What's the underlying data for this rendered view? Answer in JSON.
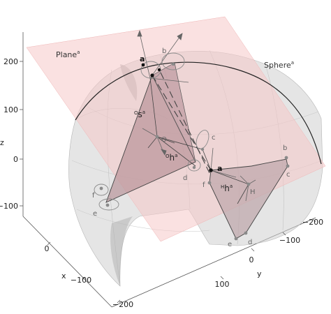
{
  "labels": {
    "plane": "Plane",
    "plane_sup": "a",
    "sphere": "Sphere",
    "sphere_sup": "a",
    "sym_s_pre": "O",
    "sym_s": "s",
    "sym_s_sup": "a",
    "sym_h_pre": "O",
    "sym_h": "h",
    "sym_h_sup": "a",
    "sym_hh_pre": "H",
    "sym_hh": "h",
    "sym_hh_sup": "a",
    "origin": "O",
    "hub": "H"
  },
  "vertices": {
    "top_a": "a",
    "top_b": "b",
    "mid_a": "a",
    "mid_b": "b",
    "mid_c": "c",
    "mid_d": "d",
    "mid_e": "e",
    "mid_f": "f",
    "c_near_o": "c",
    "d_near_o": "d",
    "left_f": "f",
    "left_e": "e"
  },
  "axes": {
    "z_label": "z",
    "x_label": "x",
    "y_label": "y",
    "z_ticks": [
      "200",
      "100",
      "0",
      "−100"
    ],
    "x_ticks": [
      "0",
      "−100",
      "−200"
    ],
    "y_ticks": [
      "−200",
      "−100",
      "0",
      "100"
    ]
  },
  "colors": {
    "plane_fill": "#f6c9c9",
    "sphere_fill": "#cfcfcf",
    "triangle_fill": "#b58f95",
    "polygon_fill": "#bda5a9",
    "edge": "#3a3a3a",
    "vertex_gray": "#8a8a8a"
  }
}
